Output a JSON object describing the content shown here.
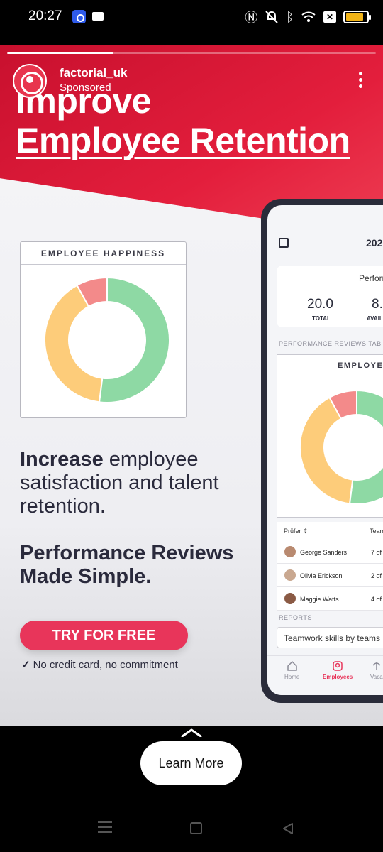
{
  "status_bar": {
    "time": "20:27",
    "icons": [
      "nfc-app-icon",
      "mail-icon",
      "nfc-icon",
      "mute-icon",
      "bluetooth-icon",
      "wifi-icon",
      "x-icon",
      "battery-icon"
    ],
    "battery_level": 0.85,
    "battery_color": "#f2b417"
  },
  "story": {
    "progress": 0.288,
    "account_name": "factorial_uk",
    "sponsored_label": "Sponsored",
    "headline_line1": "Improve",
    "headline_line2": "Employee Retention",
    "happiness_title": "EMPLOYEE HAPPINESS",
    "copy_bold": "Increase",
    "copy_rest": " employee satisfaction and talent retention.",
    "copy_2": "Performance Reviews Made Simple.",
    "cta_label": "TRY FOR FREE",
    "cta_note_check": "✓",
    "cta_note": "No credit card, no commitment",
    "accent_color": "#e8355a",
    "donut_segments": [
      {
        "name": "green",
        "value": 52,
        "color": "#8ed9a4"
      },
      {
        "name": "yellow",
        "value": 40,
        "color": "#fdcc7a"
      },
      {
        "name": "red",
        "value": 8,
        "color": "#f38a8a"
      }
    ]
  },
  "phone": {
    "year": "202",
    "perf_title": "Perforr",
    "total_value": "20.0",
    "total_label": "TOTAL",
    "avail_value": "8.",
    "avail_label": "AVAIL",
    "section_label": "PERFORMANCE REVIEWS TAB",
    "chart_title": "EMPLOYEE",
    "col_reviewer": "Prüfer ⇕",
    "col_team": "Team",
    "rows": [
      {
        "name": "George Sanders",
        "count": "7 of"
      },
      {
        "name": "Olivia Erickson",
        "count": "2 of"
      },
      {
        "name": "Maggie Watts",
        "count": "4 of"
      }
    ],
    "reports_label": "REPORTS",
    "team_card": "Teamwork skills by teams",
    "tabs": [
      {
        "label": "Home",
        "icon": "home-icon"
      },
      {
        "label": "Employees",
        "icon": "employees-icon"
      },
      {
        "label": "Vaca",
        "icon": "vacation-icon"
      }
    ]
  },
  "learn_more": "Learn More"
}
